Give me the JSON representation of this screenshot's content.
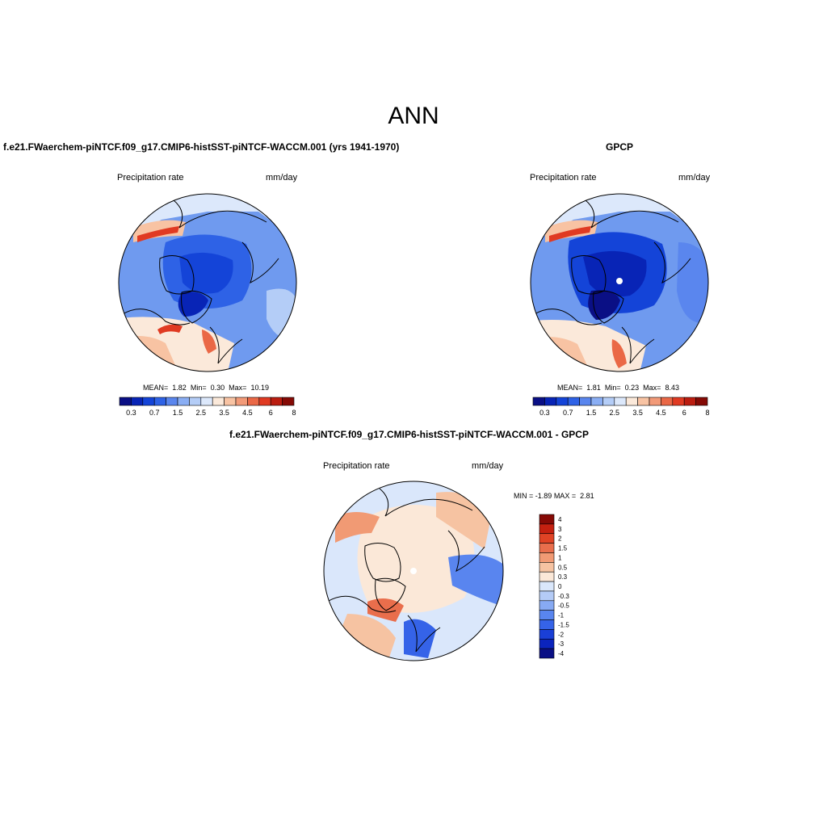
{
  "figure": {
    "title": "ANN"
  },
  "colors": {
    "ocean_blue": "#6f9aef",
    "coast": "#000000",
    "abs_scale": [
      "#0a0f85",
      "#0824b6",
      "#1444d8",
      "#2e62e6",
      "#5a86ee",
      "#8aaef4",
      "#b4cdf7",
      "#dce8fb",
      "#fbe9da",
      "#f8c3a3",
      "#f29a78",
      "#ea6846",
      "#e03a22",
      "#bb1d10",
      "#850a05"
    ],
    "diff_scale": [
      "#0a0f85",
      "#0b24bd",
      "#1a3fd6",
      "#3563e8",
      "#5985ef",
      "#87aaf3",
      "#b4cbf6",
      "#dae7fb",
      "#fbe8d8",
      "#f6c3a2",
      "#f19a74",
      "#e96e4c",
      "#e04325",
      "#c52010",
      "#860905"
    ]
  },
  "chart_data": [
    {
      "type": "heatmap",
      "projection": "north-polar-stereographic",
      "title": "f.e21.FWaerchem-piNTCF.f09_g17.CMIP6-histSST-piNTCF-WACCM.001 (yrs 1941-1970)",
      "variable": "Precipitation rate",
      "units": "mm/day",
      "stats": {
        "mean_label": "MEAN=",
        "mean": "1.82",
        "min_label": "Min=",
        "min": "0.30",
        "max_label": "Max=",
        "max": "10.19"
      },
      "colorbar": {
        "orientation": "horizontal",
        "levels": [
          "0.3",
          "0.7",
          "1.5",
          "2.5",
          "3.5",
          "4.5",
          "6",
          "8"
        ]
      }
    },
    {
      "type": "heatmap",
      "projection": "north-polar-stereographic",
      "title": "GPCP",
      "variable": "Precipitation rate",
      "units": "mm/day",
      "stats": {
        "mean_label": "MEAN=",
        "mean": "1.81",
        "min_label": "Min=",
        "min": "0.23",
        "max_label": "Max=",
        "max": "8.43"
      },
      "colorbar": {
        "orientation": "horizontal",
        "levels": [
          "0.3",
          "0.7",
          "1.5",
          "2.5",
          "3.5",
          "4.5",
          "6",
          "8"
        ]
      }
    },
    {
      "type": "heatmap",
      "projection": "north-polar-stereographic",
      "title": "f.e21.FWaerchem-piNTCF.f09_g17.CMIP6-histSST-piNTCF-WACCM.001 - GPCP",
      "variable": "Precipitation rate",
      "units": "mm/day",
      "stats": {
        "min_label": "MIN =",
        "min": "-1.89",
        "max_label": "MAX =",
        "max": "2.81"
      },
      "colorbar": {
        "orientation": "vertical",
        "levels": [
          "4",
          "3",
          "2",
          "1.5",
          "1",
          "0.5",
          "0.3",
          "0",
          "-0.3",
          "-0.5",
          "-1",
          "-1.5",
          "-2",
          "-3",
          "-4"
        ]
      }
    }
  ]
}
